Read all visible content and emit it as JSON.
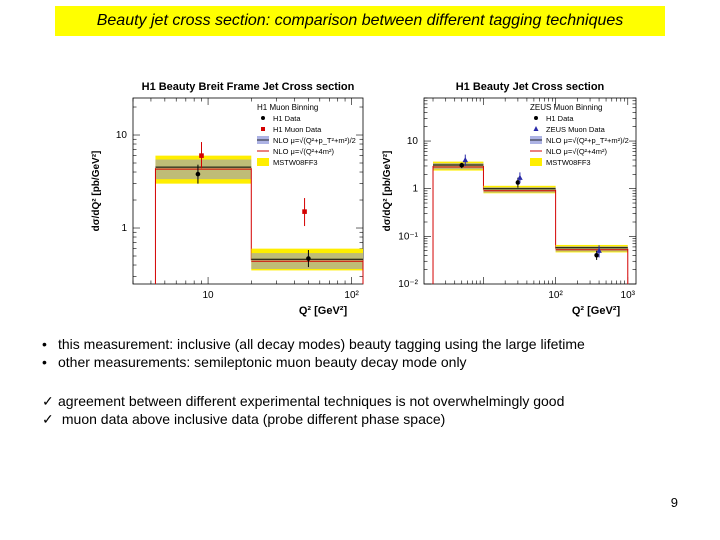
{
  "slide": {
    "title": "Beauty jet cross section: comparison between different tagging techniques",
    "page_number": "9",
    "title_color": "#ffff00"
  },
  "bullets": [
    "this measurement: inclusive (all decay modes) beauty tagging using the large lifetime",
    "other measurements: semileptonic muon beauty decay mode only"
  ],
  "checks": [
    "agreement between different experimental techniques is not overwhelmingly good",
    " muon data above inclusive data (probe different phase space)"
  ],
  "check_glyph": "✓",
  "bullet_glyph": "•",
  "chart_data": [
    {
      "type": "scatter",
      "title": "H1 Beauty Breit Frame Jet Cross section",
      "xlabel": "Q² [GeV²]",
      "ylabel": "dσ/dQ² [pb/GeV²]",
      "xscale": "log",
      "yscale": "log",
      "xlim": [
        3,
        120
      ],
      "ylim": [
        0.25,
        25
      ],
      "x_ticks": [
        {
          "v": 10,
          "label": "10"
        },
        {
          "v": 100,
          "label": "10²"
        }
      ],
      "y_ticks": [
        {
          "v": 1,
          "label": "1"
        },
        {
          "v": 10,
          "label": "10"
        }
      ],
      "legend": {
        "header": "H1 Muon Binning",
        "entries": [
          "H1 Data",
          "H1 Muon Data",
          "NLO μ=√(Q²+p_T²+m²)/2",
          "NLO μ=√(Q²+4m²)",
          "MSTW08FF3"
        ]
      },
      "bins": [
        {
          "x": [
            4.3,
            20
          ],
          "nlo": 4.4,
          "band": [
            3.0,
            6.0
          ]
        },
        {
          "x": [
            20,
            120
          ],
          "nlo": 0.45,
          "band": [
            0.35,
            0.6
          ]
        }
      ],
      "series": [
        {
          "name": "H1 Data",
          "points": [
            {
              "x": 8.5,
              "y": 3.8,
              "err": [
                3.0,
                4.8
              ]
            },
            {
              "x": 50,
              "y": 0.47,
              "err": [
                0.38,
                0.58
              ]
            }
          ]
        },
        {
          "name": "H1 Muon Data",
          "points": [
            {
              "x": 9.0,
              "y": 6.0,
              "err": [
                4.4,
                8.4
              ]
            },
            {
              "x": 47,
              "y": 1.5,
              "err": [
                1.05,
                2.1
              ]
            }
          ]
        }
      ]
    },
    {
      "type": "scatter",
      "title": "H1 Beauty Jet Cross section",
      "xlabel": "Q² [GeV²]",
      "ylabel": "dσ/dQ² [pb/GeV²]",
      "xscale": "log",
      "yscale": "log",
      "xlim": [
        1.5,
        1300
      ],
      "ylim": [
        0.01,
        80
      ],
      "x_ticks": [
        {
          "v": 100,
          "label": "10²"
        },
        {
          "v": 1000,
          "label": "10³"
        }
      ],
      "y_ticks": [
        {
          "v": 0.01,
          "label": "10⁻²"
        },
        {
          "v": 0.1,
          "label": "10⁻¹"
        },
        {
          "v": 1,
          "label": "1"
        },
        {
          "v": 10,
          "label": "10"
        }
      ],
      "legend": {
        "header": "ZEUS Muon Binning",
        "entries": [
          "H1 Data",
          "ZEUS Muon Data",
          "NLO μ=√(Q²+p_T²+m²)/2",
          "NLO μ=√(Q²+4m²)",
          "MSTW08FF3"
        ]
      },
      "bins": [
        {
          "x": [
            2,
            10
          ],
          "nlo": 3.0,
          "band": [
            2.4,
            3.7
          ]
        },
        {
          "x": [
            10,
            100
          ],
          "nlo": 0.95,
          "band": [
            0.8,
            1.15
          ]
        },
        {
          "x": [
            100,
            1000
          ],
          "nlo": 0.055,
          "band": [
            0.046,
            0.066
          ]
        }
      ],
      "series": [
        {
          "name": "H1 Data",
          "points": [
            {
              "x": 5,
              "y": 3.1,
              "err": [
                2.7,
                3.5
              ]
            },
            {
              "x": 30,
              "y": 1.35,
              "err": [
                1.05,
                1.7
              ]
            },
            {
              "x": 370,
              "y": 0.04,
              "err": [
                0.032,
                0.05
              ]
            }
          ]
        },
        {
          "name": "ZEUS Muon Data",
          "points": [
            {
              "x": 5.6,
              "y": 4.0,
              "err": [
                3.0,
                5.2
              ]
            },
            {
              "x": 32,
              "y": 1.7,
              "err": [
                1.3,
                2.2
              ]
            },
            {
              "x": 400,
              "y": 0.05,
              "err": [
                0.036,
                0.065
              ]
            }
          ]
        }
      ]
    }
  ]
}
